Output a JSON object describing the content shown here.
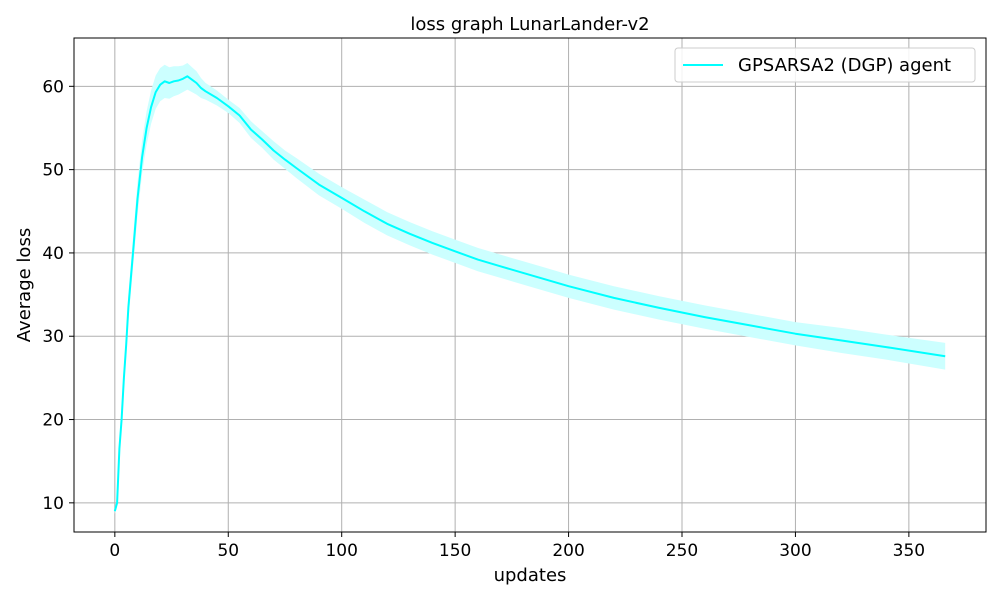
{
  "chart_data": {
    "type": "line",
    "title": "loss graph LunarLander-v2",
    "xlabel": "updates",
    "ylabel": "Average loss",
    "xlim": [
      -18,
      384
    ],
    "ylim": [
      6.5,
      65.8
    ],
    "xticks": [
      0,
      50,
      100,
      150,
      200,
      250,
      300,
      350
    ],
    "yticks": [
      10,
      20,
      30,
      40,
      50,
      60
    ],
    "grid": true,
    "legend_position": "top-right",
    "series": [
      {
        "name": "GPSARSA2 (DGP) agent",
        "color": "#00ffff",
        "band_color": "#ccffff",
        "x": [
          0,
          1,
          2,
          3,
          4,
          5,
          6,
          8,
          10,
          12,
          14,
          16,
          18,
          20,
          22,
          24,
          26,
          28,
          30,
          32,
          34,
          36,
          38,
          40,
          45,
          50,
          55,
          60,
          65,
          70,
          75,
          80,
          90,
          100,
          110,
          120,
          130,
          140,
          150,
          160,
          170,
          180,
          190,
          200,
          220,
          240,
          260,
          280,
          300,
          320,
          340,
          366
        ],
        "y": [
          9.0,
          10.0,
          16.5,
          20.0,
          25.0,
          29.0,
          33.5,
          40.0,
          46.5,
          51.5,
          55.0,
          57.5,
          59.3,
          60.2,
          60.6,
          60.4,
          60.6,
          60.7,
          60.9,
          61.2,
          60.8,
          60.4,
          59.8,
          59.4,
          58.6,
          57.6,
          56.5,
          54.8,
          53.6,
          52.3,
          51.2,
          50.2,
          48.2,
          46.6,
          45.0,
          43.5,
          42.3,
          41.2,
          40.2,
          39.2,
          38.4,
          37.6,
          36.8,
          36.0,
          34.6,
          33.4,
          32.3,
          31.3,
          30.3,
          29.5,
          28.7,
          27.6
        ],
        "band": [
          0.3,
          0.5,
          0.8,
          1.0,
          1.2,
          1.4,
          1.6,
          1.8,
          2.0,
          2.0,
          2.0,
          2.0,
          2.0,
          2.0,
          2.0,
          1.9,
          1.8,
          1.7,
          1.6,
          1.6,
          1.5,
          1.4,
          1.2,
          1.0,
          0.9,
          0.8,
          0.9,
          1.0,
          1.0,
          1.1,
          1.1,
          1.2,
          1.3,
          1.3,
          1.4,
          1.4,
          1.4,
          1.4,
          1.4,
          1.4,
          1.4,
          1.4,
          1.4,
          1.4,
          1.4,
          1.4,
          1.4,
          1.4,
          1.4,
          1.5,
          1.5,
          1.6
        ]
      }
    ]
  }
}
